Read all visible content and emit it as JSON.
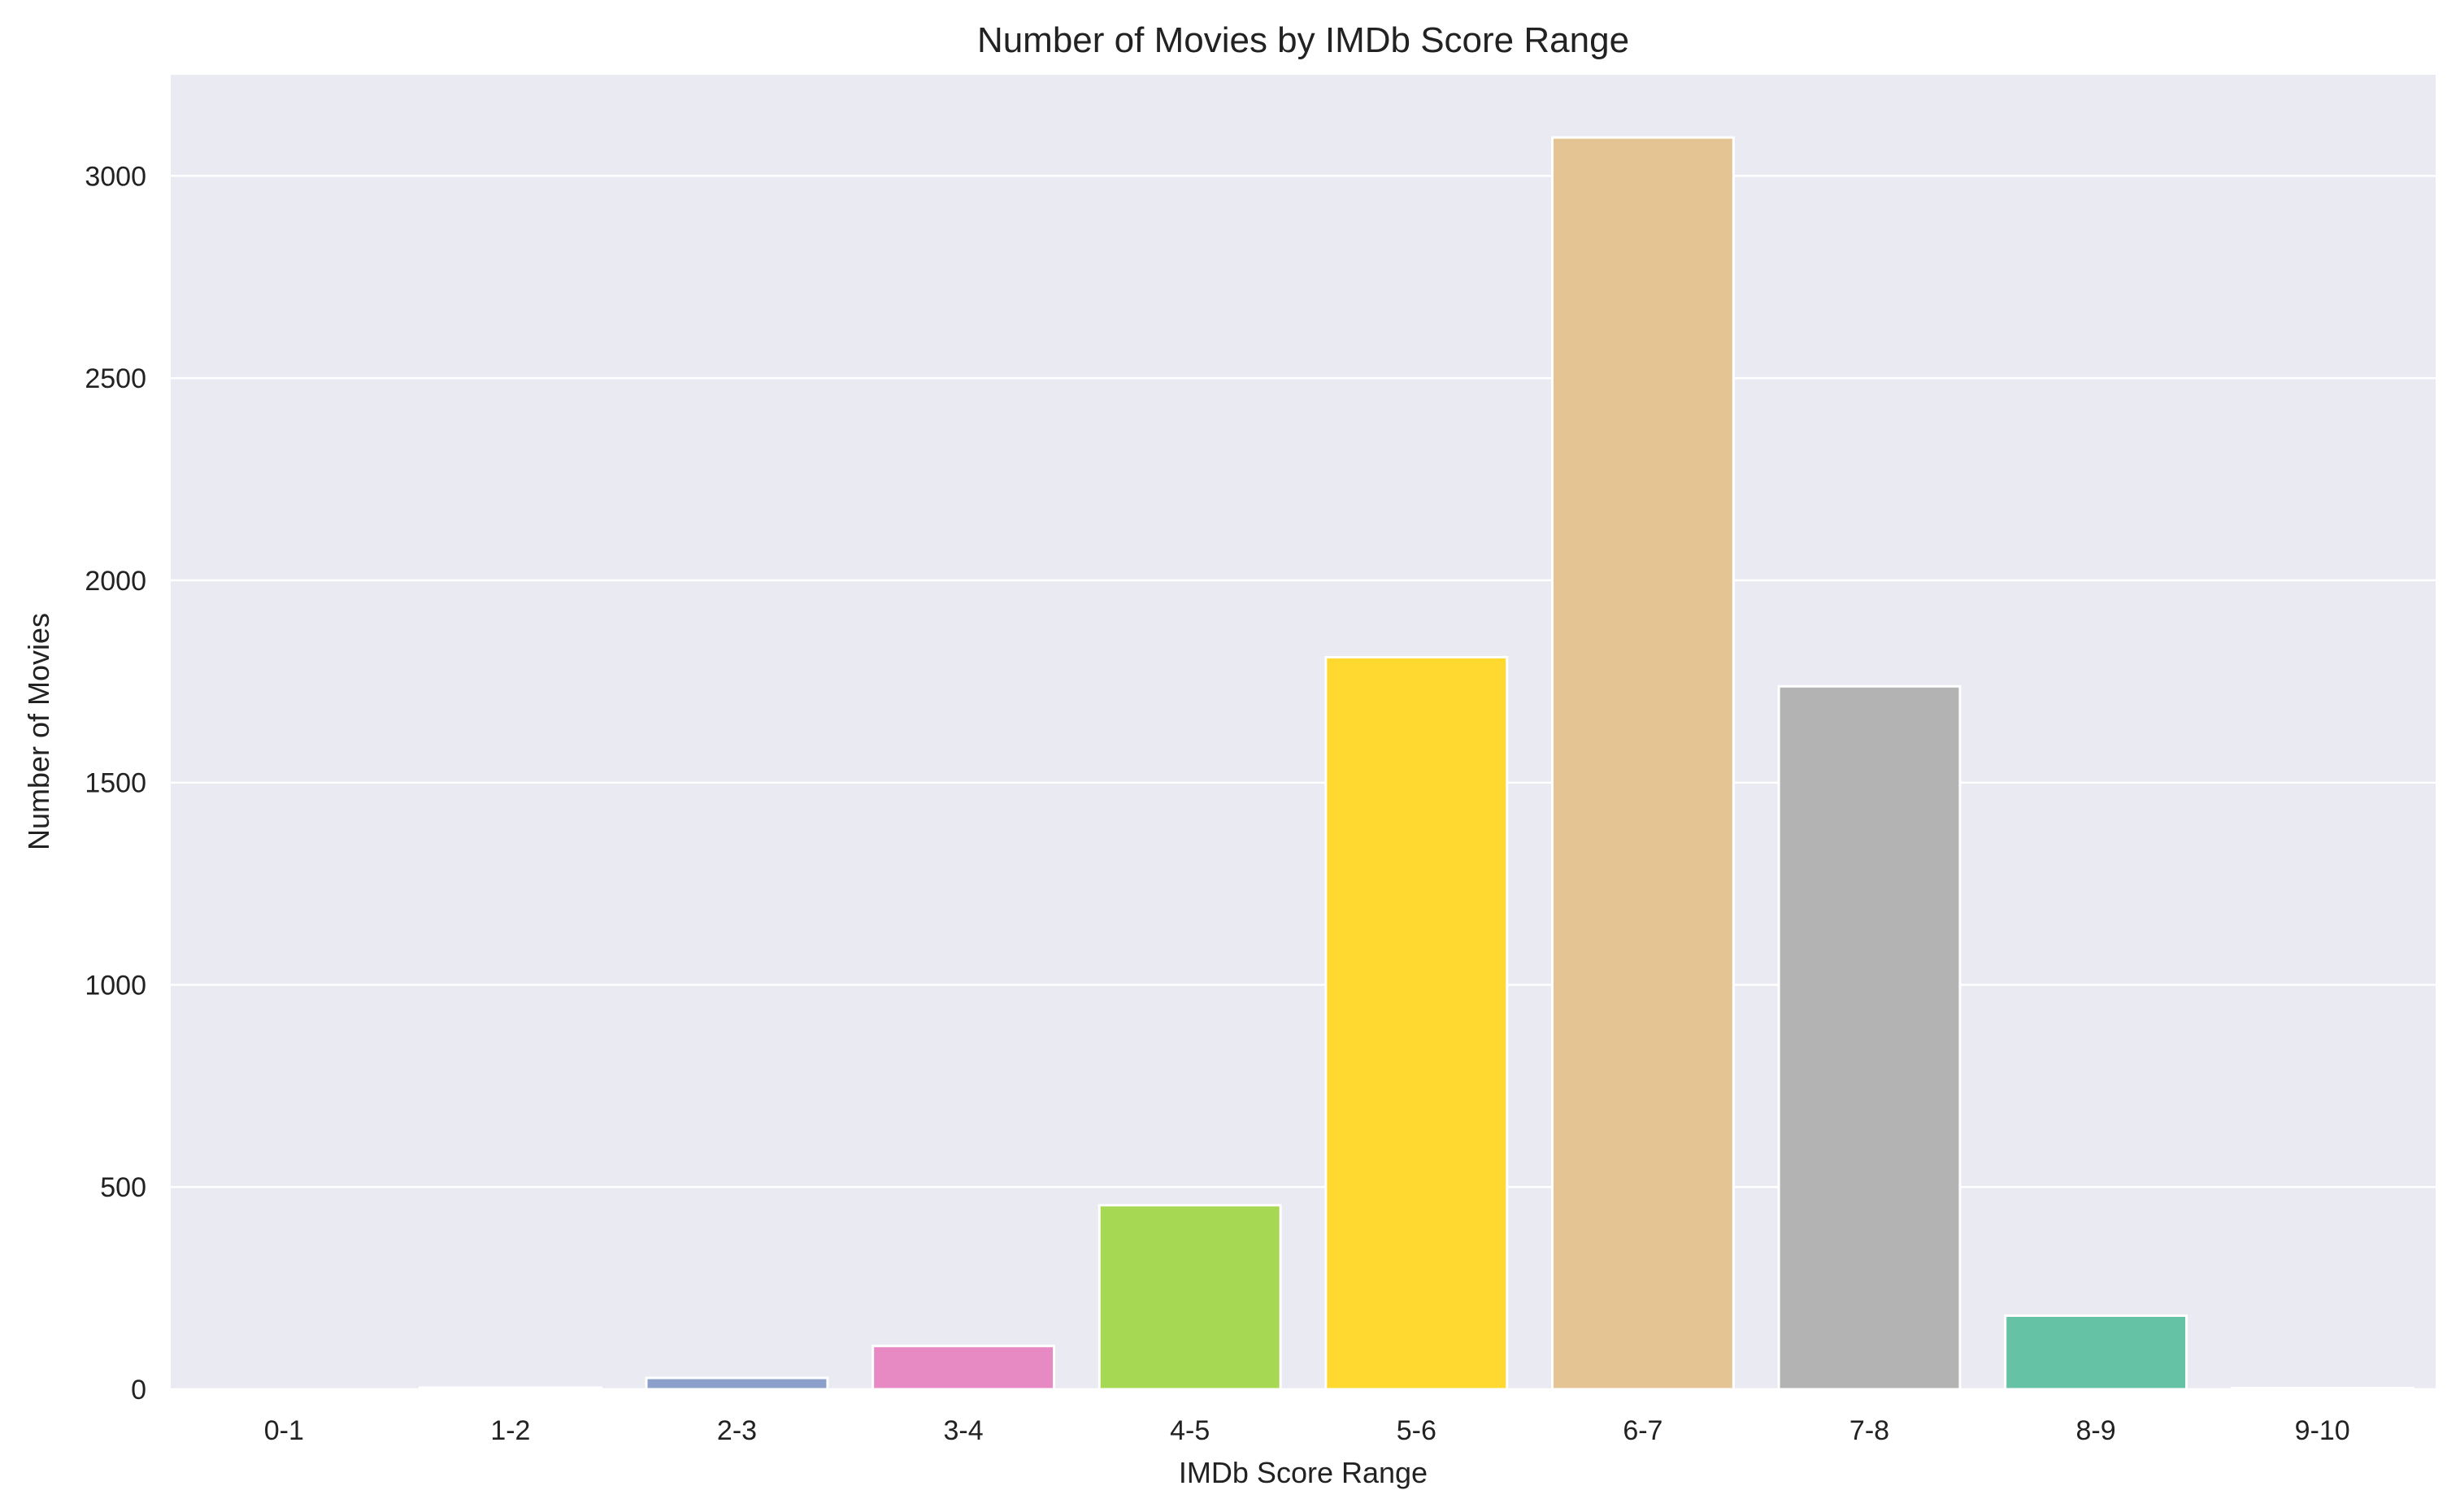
{
  "chart_data": {
    "type": "bar",
    "title": "Number of Movies by IMDb Score Range",
    "xlabel": "IMDb Score Range",
    "ylabel": "Number of Movies",
    "categories": [
      "0-1",
      "1-2",
      "2-3",
      "3-4",
      "4-5",
      "5-6",
      "6-7",
      "7-8",
      "8-9",
      "9-10"
    ],
    "values": [
      0,
      4,
      28,
      107,
      455,
      1810,
      3095,
      1738,
      182,
      3
    ],
    "ylim": [
      0,
      3250
    ],
    "yticks": [
      0,
      500,
      1000,
      1500,
      2000,
      2500,
      3000
    ],
    "bar_colors": [
      "#66c2a5",
      "#fc8d62",
      "#8da0cb",
      "#e78ac3",
      "#a6d854",
      "#ffd92f",
      "#e5c494",
      "#b3b3b3",
      "#66c2a5",
      "#fc8d62"
    ],
    "grid": true,
    "legend": "none",
    "background": "#eaeaf2"
  }
}
